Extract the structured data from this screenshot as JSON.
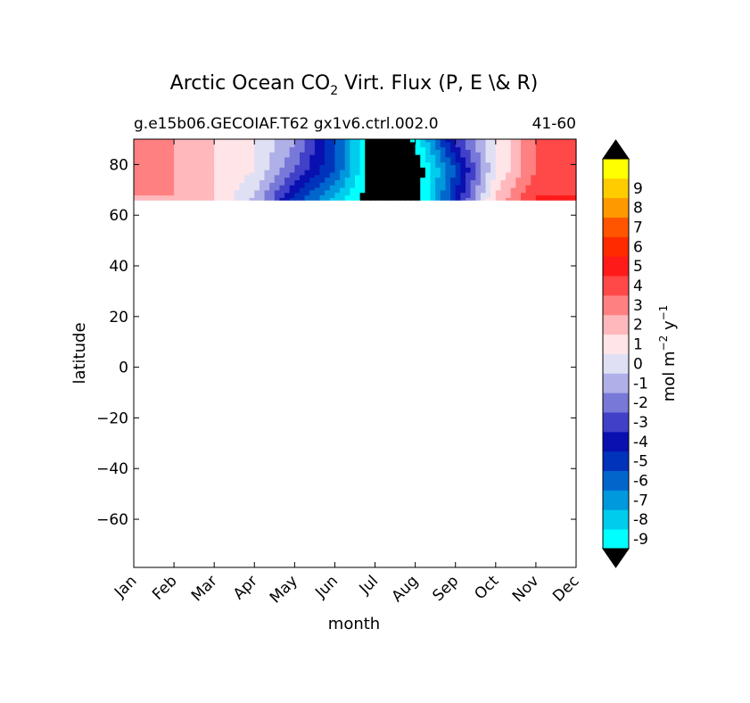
{
  "chart_data": {
    "type": "contourf",
    "title_main": "Arctic Ocean CO",
    "title_sub": "2",
    "title_rest": " Virt. Flux (P, E \\& R)",
    "subtitle_left": "g.e15b06.GECOIAF.T62 gx1v6.ctrl.002.0",
    "subtitle_right": "41-60",
    "xlabel": "month",
    "ylabel": "latitude",
    "x_ticks": [
      "Jan",
      "Feb",
      "Mar",
      "Apr",
      "May",
      "Jun",
      "Jul",
      "Aug",
      "Sep",
      "Oct",
      "Nov",
      "Dec"
    ],
    "y_ticks": [
      80,
      60,
      40,
      20,
      0,
      -20,
      -40,
      -60
    ],
    "y_tick_labels": [
      "80",
      "60",
      "40",
      "20",
      "0",
      "−20",
      "−40",
      "−60"
    ],
    "ylim": [
      -79,
      90
    ],
    "xlim": [
      0,
      11
    ],
    "data_lat_min": 66,
    "colorbar": {
      "levels": [
        "-9",
        "-8",
        "-7",
        "-6",
        "-5",
        "-4",
        "-3",
        "-2",
        "-1",
        "0",
        "1",
        "2",
        "3",
        "4",
        "5",
        "6",
        "7",
        "8",
        "9"
      ],
      "colors": [
        "#00ffff",
        "#00ccee",
        "#0099dd",
        "#0066cc",
        "#0033bb",
        "#0a10b0",
        "#4040c8",
        "#7878d8",
        "#b0b0e8",
        "#e0e0f4",
        "#ffe4e8",
        "#ffb8bc",
        "#ff8080",
        "#ff4848",
        "#ff1a1a",
        "#ff2a00",
        "#ff5500",
        "#ff9900",
        "#ffcc00",
        "#ffff00"
      ],
      "under_color": "#000000",
      "over_color": "#000000",
      "label_pre": "mol m",
      "label_sup1": "−2",
      "label_mid": " y",
      "label_sup2": "−1"
    },
    "field_columns": {
      "months": [
        0,
        1,
        2,
        3,
        4,
        5,
        6,
        7,
        8,
        9,
        10,
        11
      ],
      "value_at_68N": [
        3,
        3,
        2,
        0,
        -4,
        -7,
        -10,
        -10,
        -4,
        2,
        5,
        5
      ],
      "value_at_78N": [
        4,
        3,
        2,
        1,
        -2,
        -5,
        -10,
        -10,
        -5,
        1,
        4,
        5
      ],
      "value_at_88N": [
        4,
        3,
        2,
        1,
        -1,
        -5,
        -10,
        -9,
        -3,
        1,
        4,
        5
      ]
    }
  }
}
